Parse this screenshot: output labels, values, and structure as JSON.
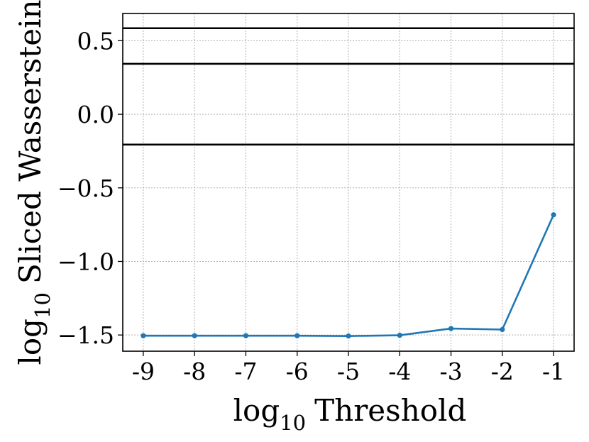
{
  "chart_data": {
    "type": "line",
    "title": "",
    "xlabel": {
      "log": "log",
      "sub": "10",
      "text": "Threshold"
    },
    "ylabel": {
      "log": "log",
      "sub": "10",
      "text": "Sliced Wasserstein"
    },
    "x_ticks": [
      -9,
      -8,
      -7,
      -6,
      -5,
      -4,
      -3,
      -2,
      -1
    ],
    "x_tick_labels": [
      "-9",
      "-8",
      "-7",
      "-6",
      "-5",
      "-4",
      "-3",
      "-2",
      "-1"
    ],
    "y_ticks": [
      0.5,
      0.0,
      -0.5,
      -1.0,
      -1.5
    ],
    "y_tick_labels": [
      "0.5",
      "0.0",
      "−0.5",
      "−1.0",
      "−1.5"
    ],
    "xlim": [
      -9.4,
      -0.6
    ],
    "ylim": [
      -1.61,
      0.685
    ],
    "grid": true,
    "series": [
      {
        "color": "#1f77b4",
        "x": [
          -9,
          -8,
          -7,
          -6,
          -5,
          -4,
          -3,
          -2,
          -1
        ],
        "y": [
          -1.505,
          -1.505,
          -1.505,
          -1.505,
          -1.507,
          -1.502,
          -1.456,
          -1.463,
          -0.683
        ]
      }
    ],
    "reference_lines": [
      {
        "y": 0.585,
        "color": "#000000"
      },
      {
        "y": 0.343,
        "color": "#000000"
      },
      {
        "y": -0.206,
        "color": "#000000"
      }
    ]
  }
}
